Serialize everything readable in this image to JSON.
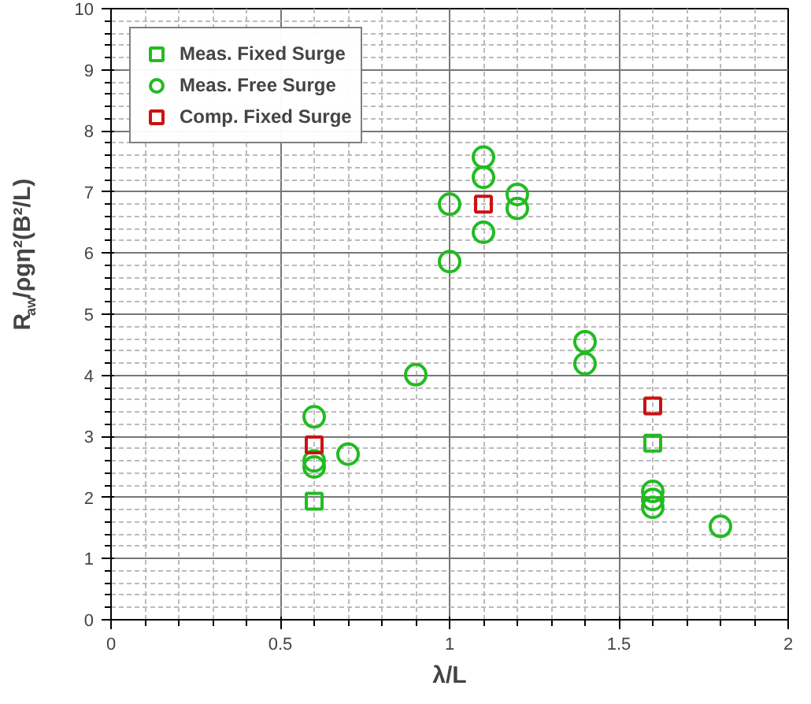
{
  "chart_data": {
    "type": "scatter",
    "xlabel": "λ/L",
    "ylabel": "R$_{aw}$/ρgη²(B²/L)",
    "xlim": [
      0,
      2
    ],
    "ylim": [
      0,
      10
    ],
    "xticks": [
      0,
      0.5,
      1,
      1.5,
      2
    ],
    "yticks": [
      0,
      1,
      2,
      3,
      4,
      5,
      6,
      7,
      8,
      9,
      10
    ],
    "grid": true,
    "legend": "top left",
    "series": [
      {
        "name": "Meas. Fixed Surge",
        "color": "#22bb22",
        "marker": "square",
        "x": [
          0.6,
          1.6
        ],
        "values": [
          1.94,
          2.89
        ]
      },
      {
        "name": "Meas. Free Surge",
        "color": "#22bb22",
        "marker": "circle",
        "x": [
          0.6,
          0.6,
          0.6,
          0.7,
          0.9,
          1.0,
          1.0,
          1.1,
          1.1,
          1.1,
          1.2,
          1.2,
          1.4,
          1.4,
          1.6,
          1.6,
          1.6,
          1.8
        ],
        "values": [
          3.32,
          2.6,
          2.5,
          2.71,
          4.01,
          6.8,
          5.86,
          7.57,
          7.24,
          6.34,
          6.96,
          6.73,
          4.55,
          4.19,
          2.1,
          1.97,
          1.84,
          1.53
        ]
      },
      {
        "name": "Comp. Fixed Surge",
        "color": "#cc1111",
        "marker": "square",
        "x": [
          0.6,
          1.1,
          1.6
        ],
        "values": [
          2.86,
          6.8,
          3.5
        ]
      }
    ]
  }
}
